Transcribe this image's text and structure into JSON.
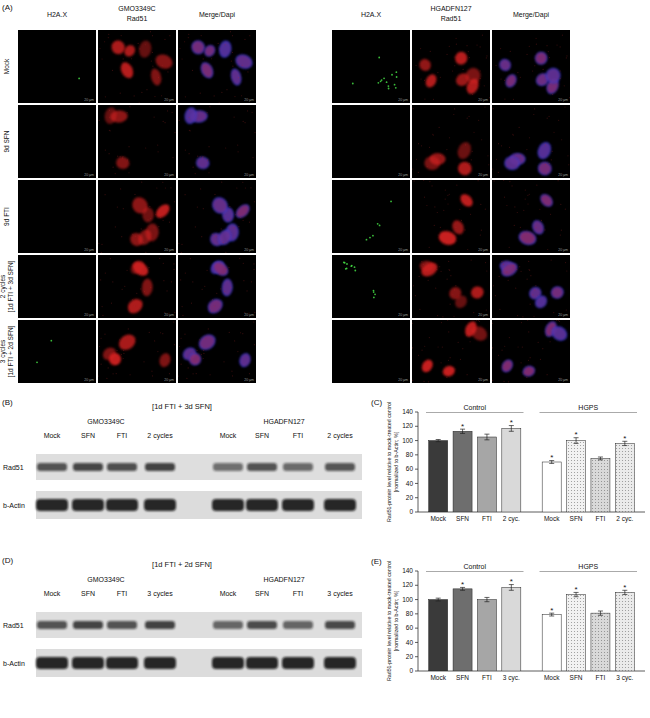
{
  "panel_a": {
    "panel": "(A)",
    "channels": [
      "H2A.X",
      "Rad51",
      "Merge/Dapi"
    ],
    "cell_lines": [
      "GMO3349C",
      "HGADFN127"
    ],
    "rows": [
      [
        "Mock"
      ],
      [
        "9d SFN"
      ],
      [
        "9d FTI"
      ],
      [
        "2 cycles",
        "[1d FTI + 3d SFN]"
      ],
      [
        "3 cycles",
        "[1d FTI + 2d SFN]"
      ]
    ],
    "scale_bar": "20 µm"
  },
  "blots": [
    {
      "panel": "(B)",
      "title": "[1d FTI + 3d SFN]",
      "cell_lines": [
        "GMO3349C",
        "HGADFN127"
      ],
      "lanes": [
        "Mock",
        "SFN",
        "FTI",
        "2 cycles"
      ],
      "rows": [
        "Rad51",
        "b-Actin"
      ]
    },
    {
      "panel": "(D)",
      "title": "[1d FTI + 2d SFN]",
      "cell_lines": [
        "GMO3349C",
        "HGADFN127"
      ],
      "lanes": [
        "Mock",
        "SFN",
        "FTI",
        "3 cycles"
      ],
      "rows": [
        "Rad51",
        "b-Actin"
      ]
    }
  ],
  "chart_data": [
    {
      "type": "bar",
      "panel": "(C)",
      "y_label": [
        "Rad51-protein level relative to mock-treated control",
        "[normalized to b-Actin; %]"
      ],
      "categories": [
        "Mock",
        "SFN",
        "FTI",
        "2 cyc."
      ],
      "series": [
        {
          "name": "Control",
          "colors": [
            "#3a3a3a",
            "#6e6e6e",
            "#a6a6a6",
            "#d9d9d9"
          ],
          "values": [
            100,
            113,
            105,
            117
          ],
          "errors": [
            1.5,
            3,
            4,
            4
          ],
          "significance": [
            null,
            "*",
            null,
            "*"
          ]
        },
        {
          "name": "HGPS",
          "colors": [
            "#ffffff",
            "#f2f2f2",
            "#d9d9d9",
            "#ebebeb"
          ],
          "values": [
            70,
            100,
            75,
            96
          ],
          "errors": [
            2,
            4,
            2,
            3
          ],
          "significance": [
            "*",
            "*",
            null,
            "*"
          ]
        }
      ],
      "ylim": [
        0,
        140
      ],
      "yticks": [
        0,
        20,
        40,
        60,
        80,
        100,
        120,
        140
      ],
      "grid": false
    },
    {
      "type": "bar",
      "panel": "(E)",
      "y_label": [
        "Rad51-protein level relative to mock-treated control",
        "[normalized to b-Actin; %]"
      ],
      "categories": [
        "Mock",
        "SFN",
        "FTI",
        "3 cyc."
      ],
      "series": [
        {
          "name": "Control",
          "colors": [
            "#3a3a3a",
            "#6e6e6e",
            "#a6a6a6",
            "#d9d9d9"
          ],
          "values": [
            100,
            115,
            100,
            117
          ],
          "errors": [
            2,
            2,
            3,
            4
          ],
          "significance": [
            null,
            "*",
            null,
            "*"
          ]
        },
        {
          "name": "HGPS",
          "colors": [
            "#ffffff",
            "#f2f2f2",
            "#d9d9d9",
            "#ebebeb"
          ],
          "values": [
            79,
            107,
            81,
            110
          ],
          "errors": [
            2,
            3,
            3,
            3
          ],
          "significance": [
            "*",
            "*",
            null,
            "*"
          ]
        }
      ],
      "ylim": [
        0,
        140
      ],
      "yticks": [
        0,
        20,
        40,
        60,
        80,
        100,
        120,
        140
      ],
      "grid": false
    }
  ]
}
